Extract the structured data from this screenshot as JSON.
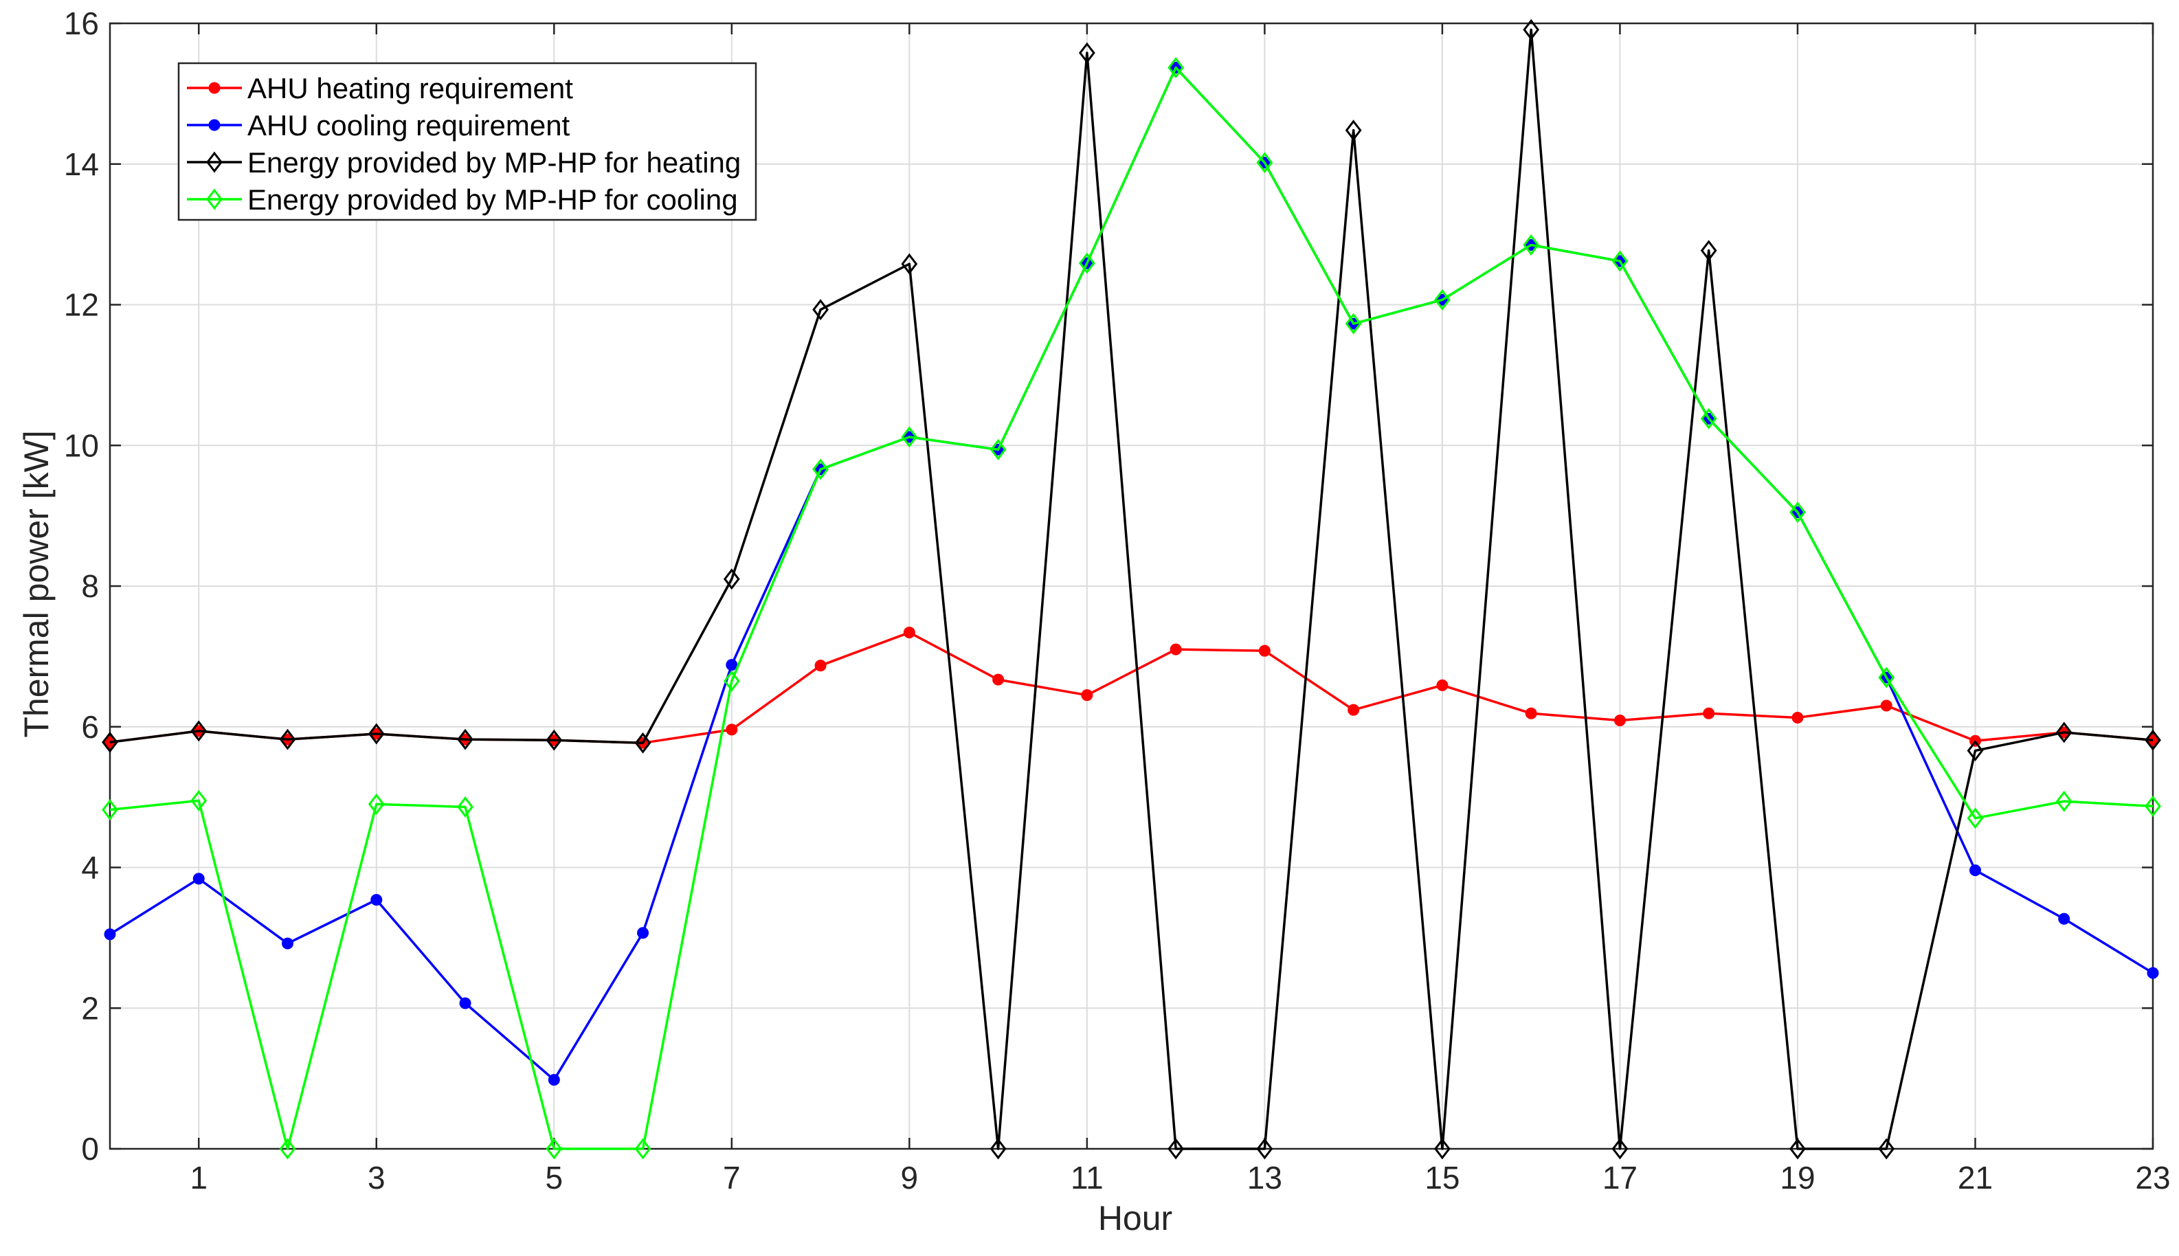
{
  "chart_data": {
    "type": "line",
    "title": "",
    "xlabel": "Hour",
    "ylabel": "Thermal power [kW]",
    "xlim": [
      0,
      23
    ],
    "ylim": [
      0,
      16
    ],
    "x_ticks": [
      1,
      3,
      5,
      7,
      9,
      11,
      13,
      15,
      17,
      19,
      21,
      23
    ],
    "y_ticks": [
      0,
      2,
      4,
      6,
      8,
      10,
      12,
      14,
      16
    ],
    "grid": true,
    "legend_position": "top-left",
    "x": [
      0,
      1,
      2,
      3,
      4,
      5,
      6,
      7,
      8,
      9,
      10,
      11,
      12,
      13,
      14,
      15,
      16,
      17,
      18,
      19,
      20,
      21,
      22,
      23
    ],
    "series": [
      {
        "name": "AHU heating requirement",
        "color": "#ff0000",
        "marker": "dot",
        "values": [
          5.78,
          5.94,
          5.82,
          5.9,
          5.82,
          5.81,
          5.77,
          5.96,
          6.87,
          7.34,
          6.67,
          6.45,
          7.1,
          7.08,
          6.24,
          6.59,
          6.19,
          6.09,
          6.19,
          6.13,
          6.3,
          5.8,
          5.92,
          5.81
        ]
      },
      {
        "name": "AHU cooling requirement",
        "color": "#0000ff",
        "marker": "dot",
        "values": [
          3.05,
          3.84,
          2.92,
          3.54,
          2.07,
          0.98,
          3.07,
          6.88,
          9.66,
          10.12,
          9.94,
          12.59,
          15.37,
          14.02,
          11.73,
          12.07,
          12.85,
          12.62,
          10.38,
          9.05,
          6.7,
          3.96,
          3.27,
          2.5
        ]
      },
      {
        "name": "Energy provided by MP-HP for heating",
        "color": "#000000",
        "marker": "diamond",
        "values": [
          5.78,
          5.94,
          5.82,
          5.9,
          5.82,
          5.81,
          5.77,
          8.1,
          11.93,
          12.58,
          0,
          15.58,
          0,
          0,
          14.48,
          0,
          15.91,
          0,
          12.77,
          0,
          0,
          5.66,
          5.92,
          5.81
        ]
      },
      {
        "name": "Energy provided by MP-HP for cooling",
        "color": "#00ff00",
        "marker": "diamond",
        "values": [
          4.82,
          4.95,
          0,
          4.9,
          4.86,
          0,
          0,
          6.65,
          9.66,
          10.12,
          9.94,
          12.59,
          15.37,
          14.02,
          11.73,
          12.07,
          12.85,
          12.62,
          10.38,
          9.05,
          6.7,
          4.7,
          4.94,
          4.87
        ]
      }
    ]
  }
}
